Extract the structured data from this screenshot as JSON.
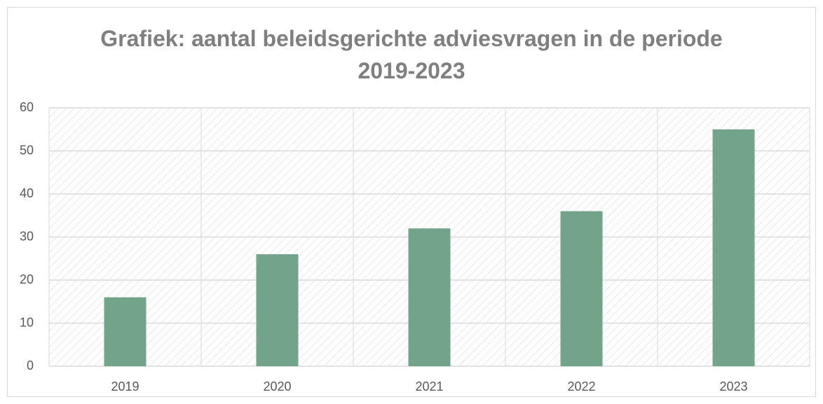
{
  "chart_data": {
    "type": "bar",
    "title": "Grafiek: aantal beleidsgerichte adviesvragen in de periode 2019-2023",
    "categories": [
      "2019",
      "2020",
      "2021",
      "2022",
      "2023"
    ],
    "values": [
      16,
      26,
      32,
      36,
      55
    ],
    "color": "#72a48a",
    "ylim": [
      0,
      60
    ],
    "yticks": [
      0,
      10,
      20,
      30,
      40,
      50,
      60
    ],
    "grid": true
  }
}
